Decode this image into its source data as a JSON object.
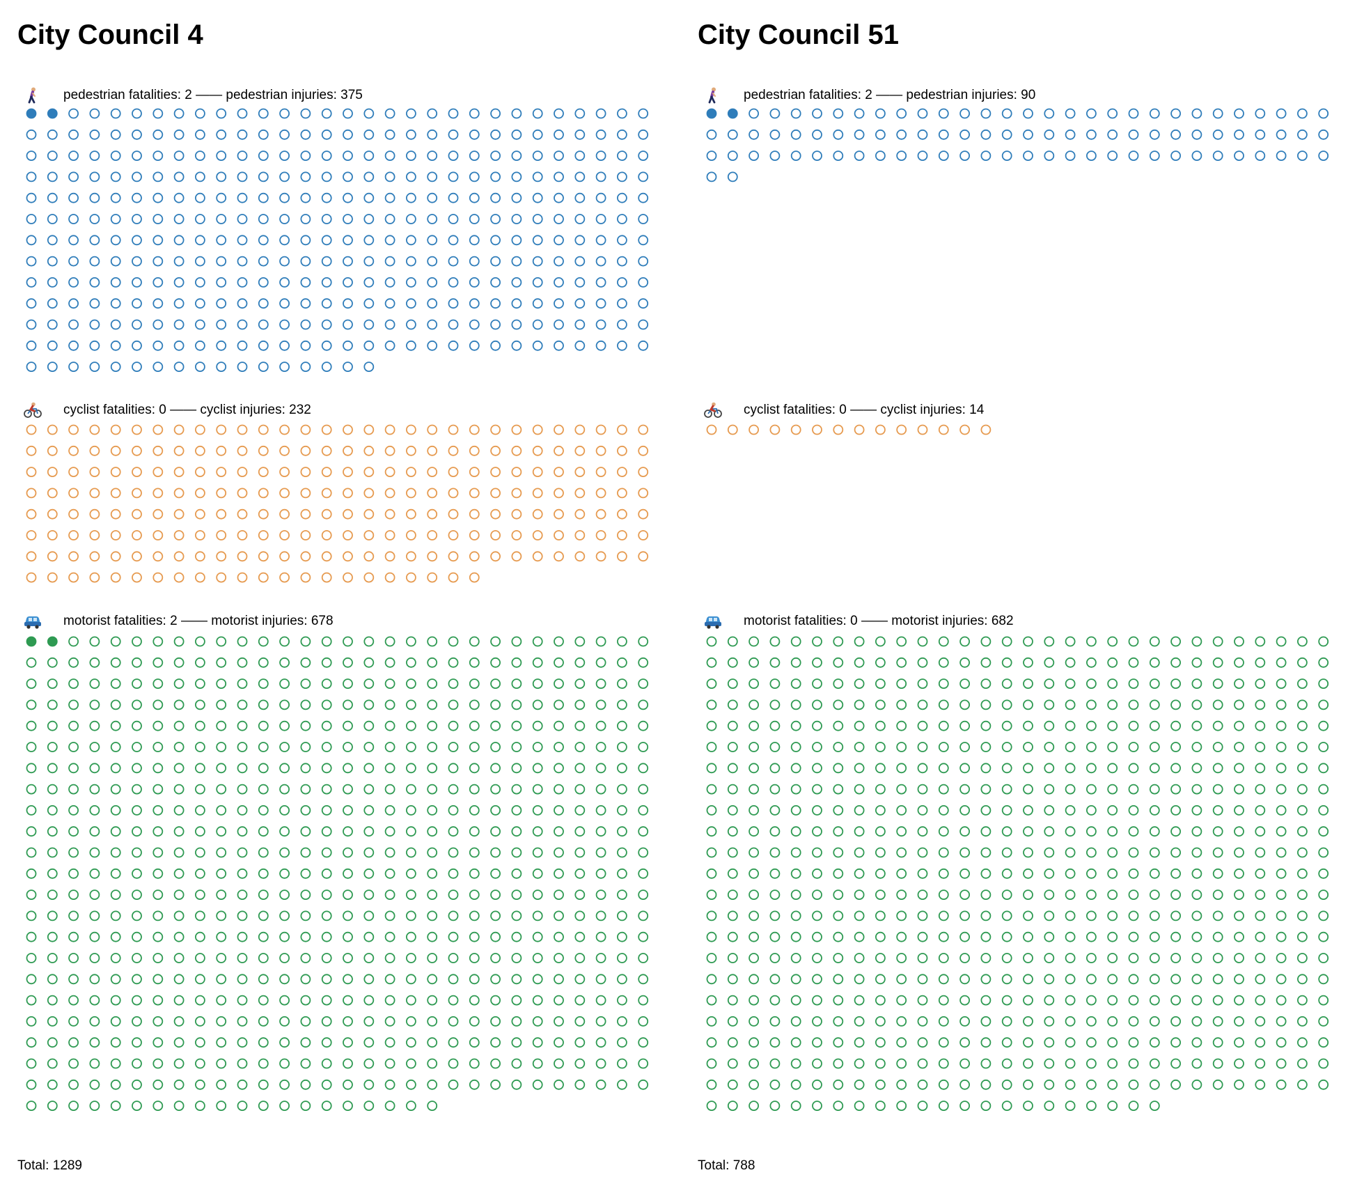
{
  "colors": {
    "pedestrian": "#2f7dba",
    "cyclist": "#e69a4f",
    "motorist": "#2e9a52"
  },
  "separator": " —— ",
  "councils": [
    {
      "title": "City Council 4",
      "total_label": "Total: 1289",
      "pedestrian": {
        "icon": "pedestrian-icon",
        "fatalities_text": "pedestrian fatalities: 2",
        "injuries_text": "pedestrian injuries: 375"
      },
      "cyclist": {
        "icon": "cyclist-icon",
        "fatalities_text": "cyclist fatalities: 0",
        "injuries_text": "cyclist injuries: 232"
      },
      "motorist": {
        "icon": "car-icon",
        "fatalities_text": "motorist fatalities: 2",
        "injuries_text": "motorist injuries: 678"
      }
    },
    {
      "title": "City Council 51",
      "total_label": "Total: 788",
      "pedestrian": {
        "icon": "pedestrian-icon",
        "fatalities_text": "pedestrian fatalities: 2",
        "injuries_text": "pedestrian injuries: 90"
      },
      "cyclist": {
        "icon": "cyclist-icon",
        "fatalities_text": "cyclist fatalities: 0",
        "injuries_text": "cyclist injuries: 14"
      },
      "motorist": {
        "icon": "car-icon",
        "fatalities_text": "motorist fatalities: 0",
        "injuries_text": "motorist injuries: 682"
      }
    }
  ],
  "chart_data": [
    {
      "type": "waffle",
      "title": "City Council 4",
      "series": [
        {
          "name": "pedestrian",
          "fatalities": 2,
          "injuries": 375
        },
        {
          "name": "cyclist",
          "fatalities": 0,
          "injuries": 232
        },
        {
          "name": "motorist",
          "fatalities": 2,
          "injuries": 678
        }
      ],
      "total": 1289
    },
    {
      "type": "waffle",
      "title": "City Council 51",
      "series": [
        {
          "name": "pedestrian",
          "fatalities": 2,
          "injuries": 90
        },
        {
          "name": "cyclist",
          "fatalities": 0,
          "injuries": 14
        },
        {
          "name": "motorist",
          "fatalities": 0,
          "injuries": 682
        }
      ],
      "total": 788
    }
  ]
}
